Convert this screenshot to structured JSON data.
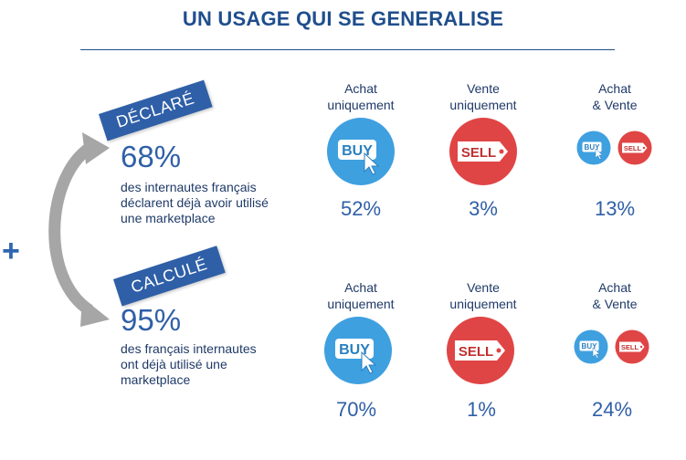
{
  "title": "UN USAGE QUI SE GENERALISE",
  "plus_sign": "+",
  "rows": [
    {
      "badge": "DÉCLARÉ",
      "percentage": "68%",
      "description": [
        "des internautes français",
        "déclarent déjà avoir utilisé",
        "une marketplace"
      ],
      "columns": [
        {
          "head": [
            "Achat",
            "uniquement"
          ],
          "value": "52%"
        },
        {
          "head": [
            "Vente",
            "uniquement"
          ],
          "value": "3%"
        },
        {
          "head": [
            "Achat",
            "& Vente"
          ],
          "value": "13%"
        }
      ]
    },
    {
      "badge": "CALCULÉ",
      "percentage": "95%",
      "description": [
        "des français internautes",
        "ont déjà utilisé une",
        "marketplace"
      ],
      "columns": [
        {
          "head": [
            "Achat",
            "uniquement"
          ],
          "value": "70%"
        },
        {
          "head": [
            "Vente",
            "uniquement"
          ],
          "value": "1%"
        },
        {
          "head": [
            "Achat",
            "& Vente"
          ],
          "value": "24%"
        }
      ]
    }
  ],
  "icon_labels": {
    "buy": "BUY",
    "sell": "SELL"
  },
  "icons": {
    "buy": "buy-tag-icon",
    "sell": "sell-tag-icon",
    "arrow": "curved-double-arrow-icon"
  },
  "colors": {
    "title": "#1f4e8c",
    "badge": "#2f5fa7",
    "buy": "#3fa0e0",
    "sell": "#e04545",
    "arrow": "#a6a6a6"
  }
}
